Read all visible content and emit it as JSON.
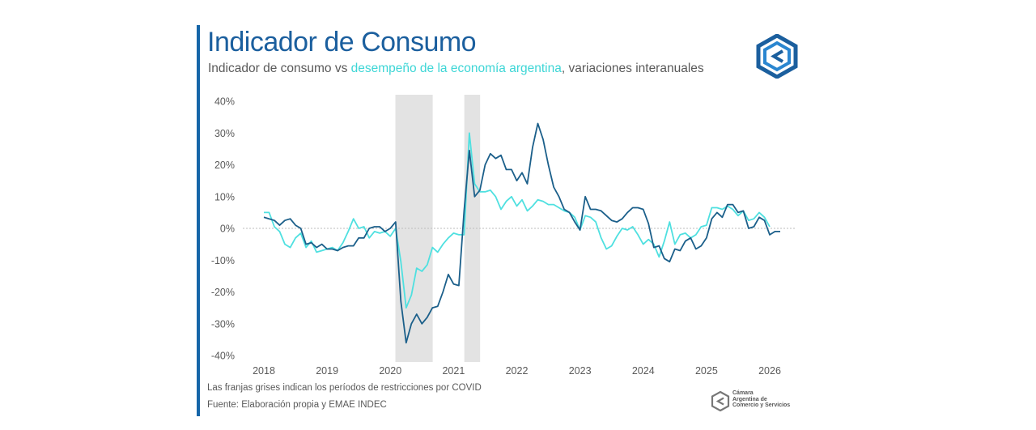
{
  "header": {
    "title": "Indicador de Consumo",
    "subtitle_part1": "Indicador de consumo vs ",
    "subtitle_highlight": "desempeño de la economía argentina",
    "subtitle_part2": ", variaciones interanuales"
  },
  "footer": {
    "note": "Las franjas grises indican los períodos de restricciones por COVID",
    "source": "Fuente: Elaboración propia y EMAE INDEC",
    "org_line1": "Cámara",
    "org_line2": "Argentina de",
    "org_line3": "Comercio y Servicios"
  },
  "colors": {
    "consumo": "#1b5f8a",
    "emae": "#4fe0e0",
    "covid_band": "#e3e3e3",
    "title": "#1b5f9e"
  },
  "chart_data": {
    "type": "line",
    "title": "Indicador de Consumo",
    "xlabel": "",
    "ylabel": "",
    "ylim": [
      -40,
      40
    ],
    "yticks": [
      40,
      30,
      20,
      10,
      0,
      -10,
      -20,
      -30,
      -40
    ],
    "ytick_labels": [
      "40%",
      "30%",
      "20%",
      "10%",
      "0%",
      "-10%",
      "-20%",
      "-30%",
      "-40%"
    ],
    "xlim": [
      2018.0,
      2026.0
    ],
    "xticks": [
      2018,
      2019,
      2020,
      2021,
      2022,
      2023,
      2024,
      2025,
      2026
    ],
    "xtick_labels": [
      "2018",
      "2019",
      "2020",
      "2021",
      "2022",
      "2023",
      "2024",
      "2025",
      "2026"
    ],
    "shaded_periods": [
      {
        "start": 2020.08,
        "end": 2020.67
      },
      {
        "start": 2021.17,
        "end": 2021.42
      }
    ],
    "series": [
      {
        "name": "Indicador de consumo",
        "color": "#1b5f8a",
        "x_start": 2018.0,
        "x_step": 0.08333,
        "values": [
          3.5,
          3,
          2.5,
          1,
          2.5,
          3,
          1,
          0,
          -5,
          -4.5,
          -6,
          -5,
          -6.5,
          -6.5,
          -7,
          -6,
          -5.5,
          -5.5,
          -3,
          -3,
          0,
          0.5,
          0.5,
          -1,
          0,
          2,
          -23,
          -36,
          -30,
          -27,
          -30,
          -28,
          -25,
          -24.5,
          -20,
          -14.5,
          -17.5,
          -18,
          5.5,
          24.5,
          10,
          12,
          20,
          23.5,
          22,
          23,
          18.5,
          18.5,
          15,
          17.5,
          14,
          25.5,
          33,
          28,
          20,
          13,
          10,
          6,
          5,
          2,
          -0.5,
          10,
          6,
          6,
          5.5,
          4,
          2.5,
          2,
          3,
          5,
          6.5,
          6.5,
          6,
          1.5,
          -6,
          -5.5,
          -9.5,
          -10.5,
          -6.5,
          -7,
          -4,
          -3,
          -6.5,
          -5.5,
          -3,
          3,
          5,
          3.5,
          7.5,
          7.5,
          5,
          5.5,
          0,
          0.5,
          3.5,
          2.5,
          -2,
          -1,
          -1
        ]
      },
      {
        "name": "Desempeño de la economía argentina",
        "color": "#4fe0e0",
        "x_start": 2018.0,
        "x_step": 0.08333,
        "values": [
          5,
          5,
          0.5,
          -1,
          -5,
          -6,
          -3,
          -1.5,
          -6,
          -4,
          -7.5,
          -7,
          -6.5,
          -6,
          -7,
          -4.5,
          -1,
          3,
          0,
          0.5,
          -3,
          -1,
          -1.5,
          -1,
          -2.5,
          0,
          -10.5,
          -25,
          -21,
          -12.5,
          -13.5,
          -11.5,
          -6,
          -7.5,
          -5,
          -3,
          -1.5,
          -2,
          -2,
          30,
          14,
          11.5,
          11.5,
          12,
          10,
          6,
          8.5,
          10,
          7,
          9,
          5.5,
          7,
          9,
          8.5,
          7.5,
          7.5,
          6.5,
          5.5,
          5,
          3.5,
          -0.5,
          4,
          3.5,
          2,
          -3,
          -6.5,
          -5.5,
          -2.5,
          0,
          -0.5,
          0.5,
          -2,
          -5,
          -3.5,
          -5,
          -9,
          -4,
          2,
          -5,
          -2,
          -1.5,
          -3,
          -2,
          0.5,
          1,
          6.5,
          6.5,
          6,
          7,
          6,
          4,
          5.5,
          2.5,
          3,
          5,
          3.5,
          0.5
        ]
      }
    ]
  }
}
